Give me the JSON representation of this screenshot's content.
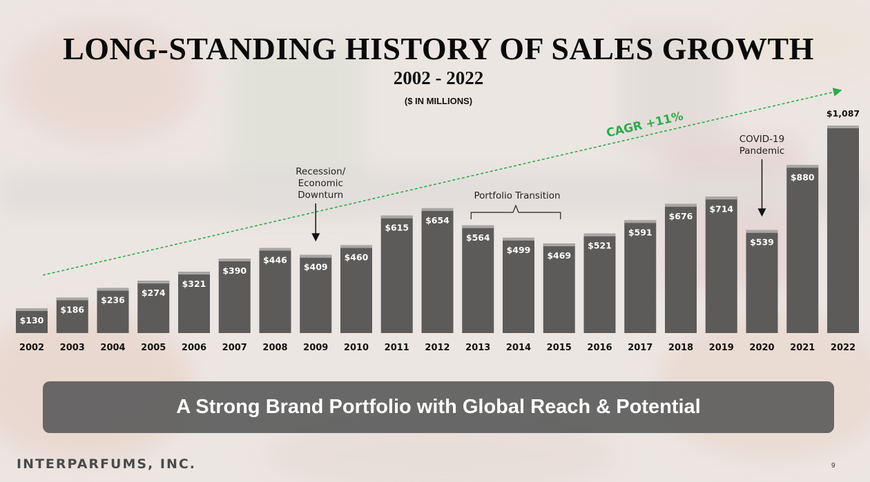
{
  "title": "LONG-STANDING HISTORY OF SALES GROWTH",
  "subtitle": "2002 - 2022",
  "units": "($ IN MILLIONS)",
  "chart_data": {
    "type": "bar",
    "categories": [
      "2002",
      "2003",
      "2004",
      "2005",
      "2006",
      "2007",
      "2008",
      "2009",
      "2010",
      "2011",
      "2012",
      "2013",
      "2014",
      "2015",
      "2016",
      "2017",
      "2018",
      "2019",
      "2020",
      "2021",
      "2022"
    ],
    "values": [
      130,
      186,
      236,
      274,
      321,
      390,
      446,
      409,
      460,
      615,
      654,
      564,
      499,
      469,
      521,
      591,
      676,
      714,
      539,
      880,
      1087
    ],
    "value_labels": [
      "$130",
      "$186",
      "$236",
      "$274",
      "$321",
      "$390",
      "$446",
      "$409",
      "$460",
      "$615",
      "$654",
      "$564",
      "$499",
      "$469",
      "$521",
      "$591",
      "$676",
      "$714",
      "$539",
      "$880",
      "$1,087"
    ],
    "ylim": [
      0,
      1087
    ],
    "bar_color": "#5c5b5a",
    "label_color": "#ffffff",
    "grid": false,
    "trend": {
      "label": "CAGR +11%",
      "color": "#2eab4b"
    },
    "annotations": [
      {
        "id": "recession",
        "lines": [
          "Recession/",
          "Economic",
          "Downturn"
        ],
        "target": "2009"
      },
      {
        "id": "portfolio",
        "text": "Portfolio Transition",
        "from": "2013",
        "to": "2015"
      },
      {
        "id": "covid",
        "lines": [
          "COVID-19",
          "Pandemic"
        ],
        "target": "2020"
      }
    ]
  },
  "banner": {
    "text": "A Strong Brand Portfolio with Global Reach & Potential"
  },
  "footer": {
    "logo": "INTERPARFUMS, INC.",
    "page": "9"
  }
}
